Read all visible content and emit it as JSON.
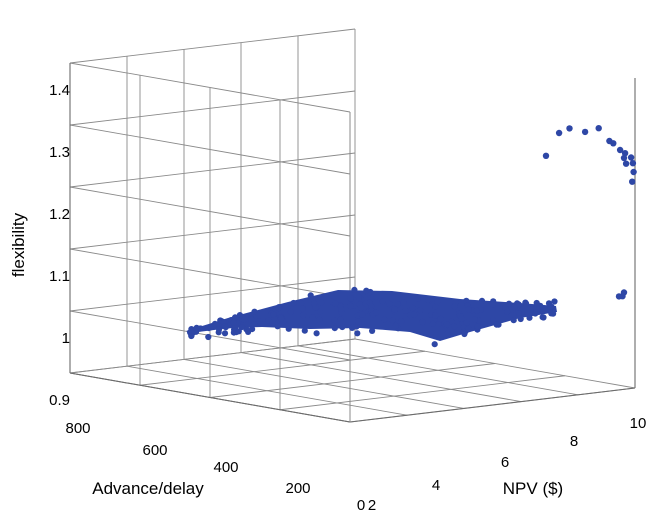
{
  "chart_data": {
    "type": "scatter",
    "projection": "3d",
    "title": "",
    "xlabel": "NPV ($)",
    "ylabel": "Advance/delay",
    "zlabel": "flexibility",
    "xlim": [
      0,
      10
    ],
    "ylim": [
      0,
      800
    ],
    "zlim": [
      0.9,
      1.4
    ],
    "xticks": [
      "2",
      "4",
      "6",
      "8",
      "10"
    ],
    "yticks": [
      "0",
      "200",
      "400",
      "600",
      "800"
    ],
    "zticks": [
      "0.9",
      "1",
      "1.1",
      "1.2",
      "1.3",
      "1.4"
    ],
    "grid": true,
    "marker_color": "#2e47a6",
    "series": [
      {
        "name": "",
        "x": [
          7.0,
          7.4,
          7.8,
          8.3,
          8.8,
          9.2,
          9.3,
          9.6,
          9.7,
          9.7,
          9.8,
          9.9,
          10.0,
          10.0,
          10.0,
          9.5,
          9.6,
          9.7
        ],
        "y": [
          10,
          5,
          8,
          4,
          6,
          8,
          5,
          10,
          4,
          7,
          9,
          3,
          6,
          4,
          8,
          5,
          3,
          7
        ],
        "z": [
          1.29,
          1.325,
          1.33,
          1.322,
          1.325,
          1.302,
          1.298,
          1.285,
          1.28,
          1.272,
          1.262,
          1.272,
          1.262,
          1.248,
          1.232,
          1.05,
          1.05,
          1.055
        ]
      }
    ]
  }
}
